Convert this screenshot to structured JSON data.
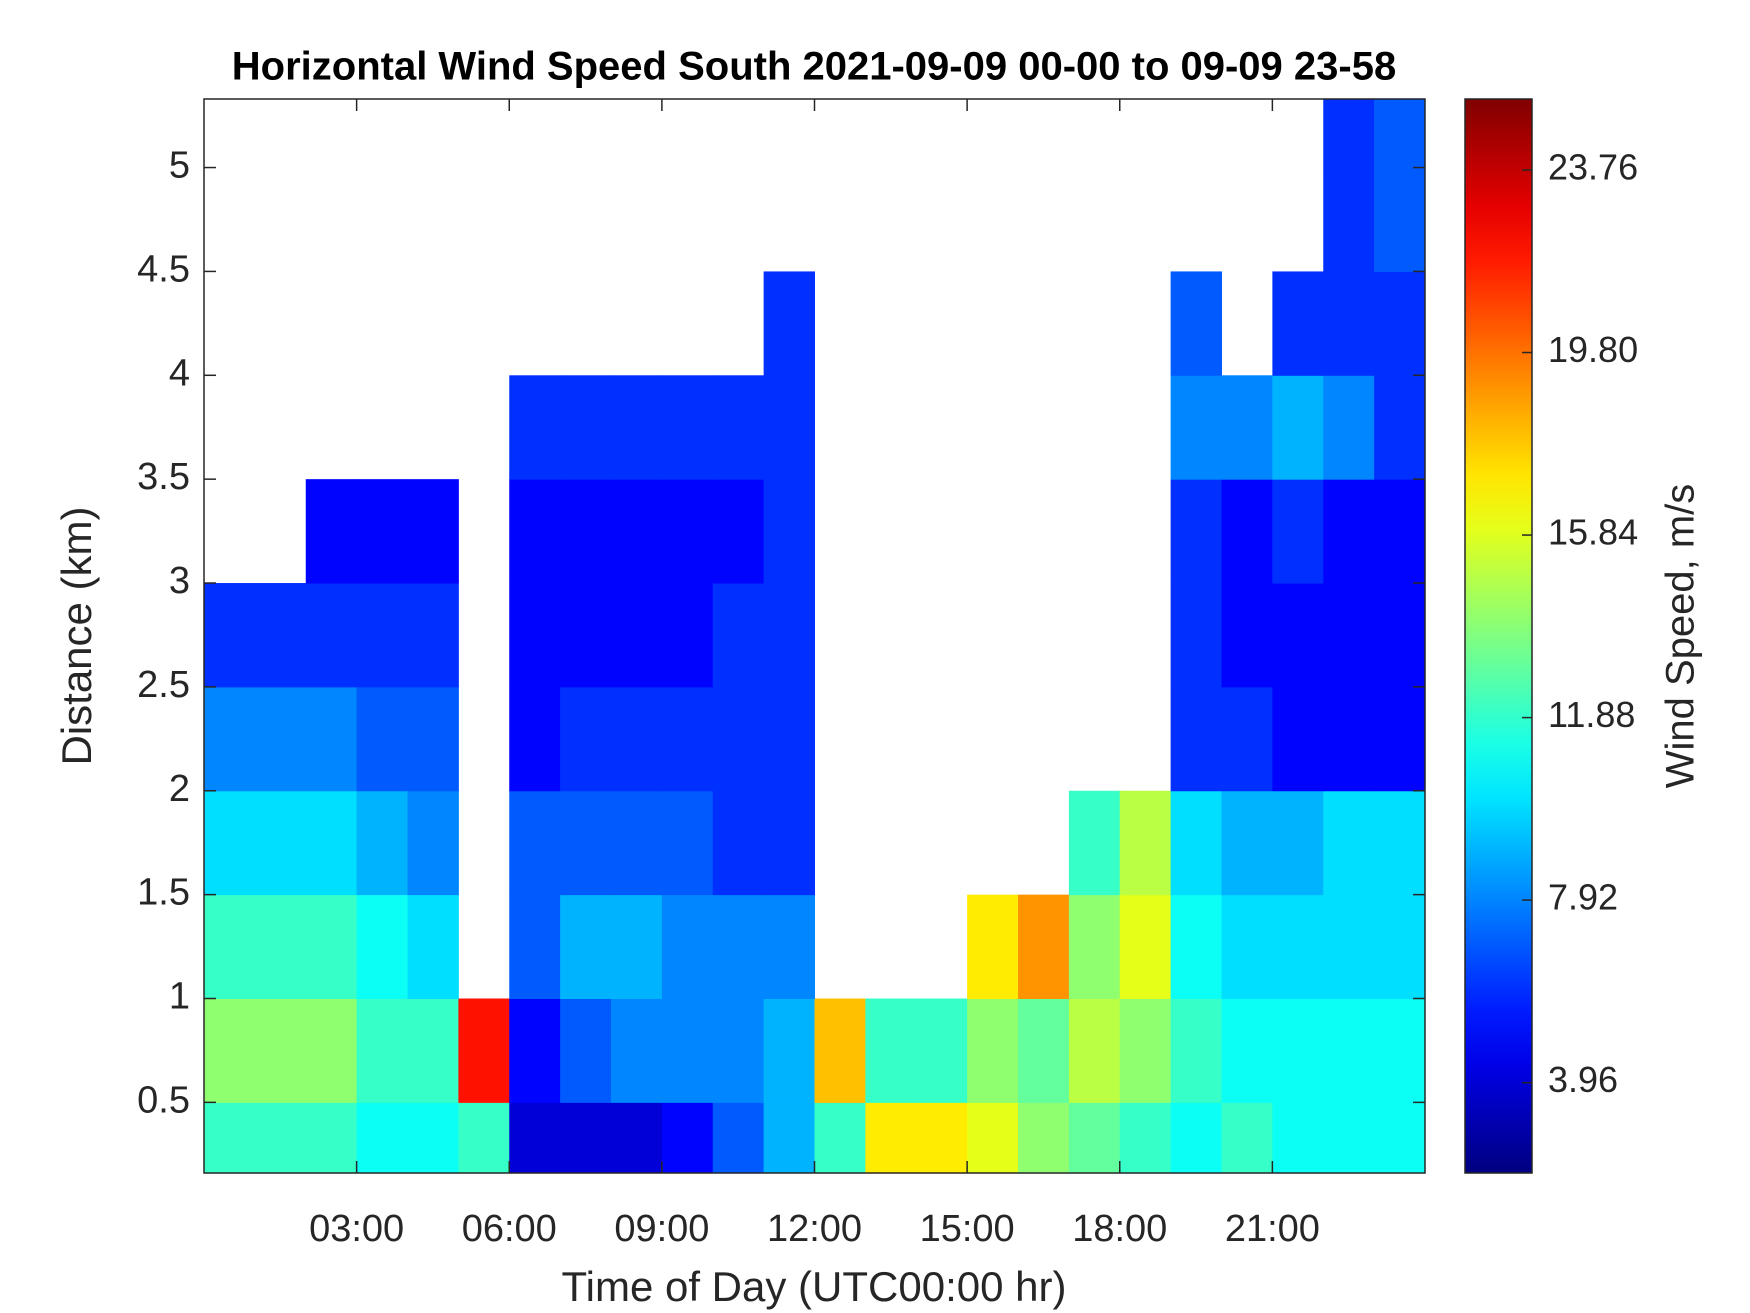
{
  "chart_data": {
    "type": "heatmap",
    "title": "Horizontal Wind Speed South 2021-09-09 00-00 to 09-09 23-58",
    "xlabel": "Time of Day (UTC00:00 hr)",
    "ylabel": "Distance (km)",
    "colorbar_label": "Wind Speed, m/s",
    "colormap": "jet",
    "x": [
      0.5,
      1.5,
      2.5,
      3.5,
      4.5,
      5.5,
      6.5,
      7.5,
      8.5,
      9.5,
      10.5,
      11.5,
      12.5,
      13.5,
      14.5,
      15.5,
      16.5,
      17.5,
      18.5,
      19.5,
      20.5,
      21.5,
      22.5,
      23.5
    ],
    "y": [
      0.25,
      0.75,
      1.25,
      1.75,
      2.25,
      2.75,
      3.25,
      3.75,
      4.25,
      4.75,
      5.25
    ],
    "z": [
      [
        12,
        12,
        12,
        11,
        11,
        12,
        4,
        4,
        4,
        5,
        7,
        9,
        12,
        17,
        17,
        16,
        14,
        13,
        12,
        11,
        12,
        11,
        11,
        11
      ],
      [
        14,
        14,
        14,
        12,
        12,
        22,
        5,
        7,
        8,
        8,
        8,
        9,
        18,
        12,
        12,
        14,
        13,
        15,
        14,
        12,
        11,
        11,
        11,
        11
      ],
      [
        12,
        12,
        12,
        11,
        10,
        null,
        7,
        9,
        9,
        8,
        8,
        8,
        null,
        null,
        null,
        17,
        19,
        14,
        16,
        11,
        10,
        10,
        10,
        10
      ],
      [
        10,
        10,
        10,
        9,
        8,
        null,
        7,
        7,
        7,
        7,
        6,
        6,
        null,
        null,
        null,
        null,
        null,
        12,
        15,
        10,
        9,
        9,
        10,
        10
      ],
      [
        8,
        8,
        8,
        7,
        7,
        null,
        5,
        6,
        6,
        6,
        6,
        6,
        null,
        null,
        null,
        null,
        null,
        null,
        null,
        6,
        6,
        5,
        5,
        5
      ],
      [
        6,
        6,
        6,
        6,
        6,
        null,
        5,
        5,
        5,
        5,
        6,
        6,
        null,
        null,
        null,
        null,
        null,
        null,
        null,
        6,
        5,
        5,
        5,
        5
      ],
      [
        null,
        null,
        5,
        5,
        5,
        null,
        5,
        5,
        5,
        5,
        5,
        6,
        null,
        null,
        null,
        null,
        null,
        null,
        null,
        6,
        5,
        6,
        5,
        5
      ],
      [
        null,
        null,
        null,
        null,
        null,
        null,
        6,
        6,
        6,
        6,
        6,
        6,
        null,
        null,
        null,
        null,
        null,
        null,
        null,
        8,
        8,
        9,
        8,
        6
      ],
      [
        null,
        null,
        null,
        null,
        null,
        null,
        null,
        null,
        null,
        null,
        null,
        6,
        null,
        null,
        null,
        null,
        null,
        null,
        null,
        7,
        null,
        6,
        6,
        6
      ],
      [
        null,
        null,
        null,
        null,
        null,
        null,
        null,
        null,
        null,
        null,
        null,
        null,
        null,
        null,
        null,
        null,
        null,
        null,
        null,
        null,
        null,
        null,
        6,
        7
      ],
      [
        null,
        null,
        null,
        null,
        null,
        null,
        null,
        null,
        null,
        null,
        null,
        null,
        null,
        null,
        null,
        null,
        null,
        null,
        null,
        null,
        null,
        null,
        6,
        7
      ]
    ],
    "xlim": [
      0,
      24
    ],
    "xticks": [
      {
        "value": 3,
        "label": "03:00"
      },
      {
        "value": 6,
        "label": "06:00"
      },
      {
        "value": 9,
        "label": "09:00"
      },
      {
        "value": 12,
        "label": "12:00"
      },
      {
        "value": 15,
        "label": "15:00"
      },
      {
        "value": 18,
        "label": "18:00"
      },
      {
        "value": 21,
        "label": "21:00"
      }
    ],
    "ylim": [
      0.16,
      5.33
    ],
    "yticks": [
      0.5,
      1,
      1.5,
      2,
      2.5,
      3,
      3.5,
      4,
      4.5,
      5
    ],
    "clim": [
      2,
      25.3
    ],
    "cticks": [
      3.96,
      7.92,
      11.88,
      15.84,
      {
        "value": 19.8,
        "label": "19.80"
      },
      23.76
    ]
  }
}
